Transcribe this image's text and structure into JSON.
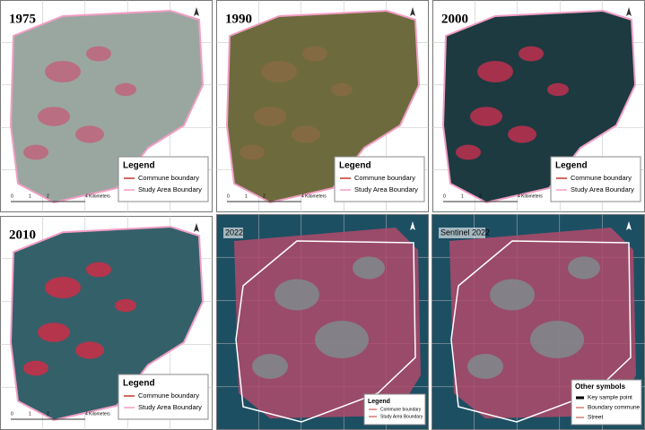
{
  "panels": [
    {
      "label": "1975",
      "legend": {
        "title": "Legend",
        "items": [
          "Commune boundary",
          "Study Area Boundary"
        ]
      },
      "scale": [
        "0",
        "1",
        "2",
        "4 Kilometers"
      ]
    },
    {
      "label": "1990",
      "legend": {
        "title": "Legend",
        "items": [
          "Commune boundary",
          "Study Area Boundary"
        ]
      },
      "scale": [
        "0",
        "1",
        "2",
        "4 Kilometers"
      ]
    },
    {
      "label": "2000",
      "legend": {
        "title": "Legend",
        "items": [
          "Commune boundary",
          "Study Area Boundary"
        ]
      },
      "scale": [
        "0",
        "1",
        "2",
        "4 Kilometers"
      ]
    },
    {
      "label": "2010",
      "legend": {
        "title": "Legend",
        "items": [
          "Commune boundary",
          "Study Area Boundary"
        ]
      },
      "scale": [
        "0",
        "1",
        "2",
        "4 Kilometers"
      ]
    },
    {
      "label": "2022",
      "legend": {
        "title": "Legend",
        "items": [
          "Commune boundary",
          "Study Area Boundary"
        ]
      }
    },
    {
      "label": "Sentinel 2022",
      "legend": {
        "title": "Other symbols",
        "items": [
          "Key sample point",
          "Boundary commune",
          "Street"
        ]
      }
    }
  ]
}
